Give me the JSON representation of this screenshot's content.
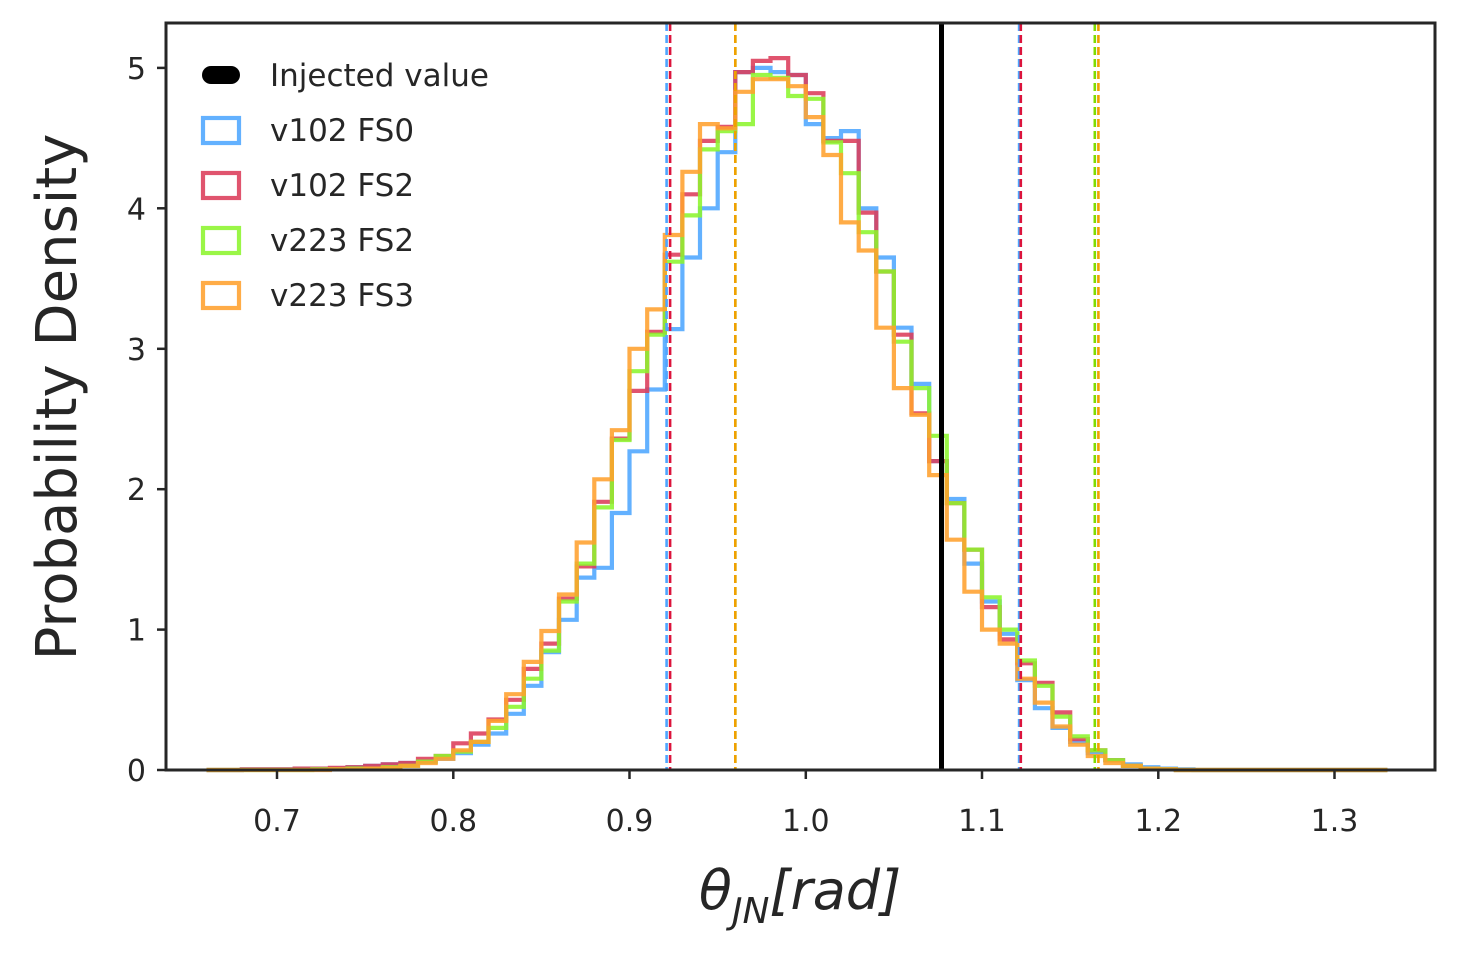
{
  "chart_data": {
    "type": "histogram",
    "title": "",
    "xlabel": "θ_JN[rad]",
    "xlabel_parts": {
      "symbol": "θ",
      "sub": "JN",
      "rest": "[rad]"
    },
    "ylabel": "Probability Density",
    "xlim": [
      0.637,
      1.357
    ],
    "ylim": [
      0,
      5.32
    ],
    "xticks": [
      0.7,
      0.8,
      0.9,
      1.0,
      1.1,
      1.2,
      1.3
    ],
    "xtick_labels": [
      "0.7",
      "0.8",
      "0.9",
      "1.0",
      "1.1",
      "1.2",
      "1.3"
    ],
    "yticks": [
      0,
      1,
      2,
      3,
      4,
      5
    ],
    "ytick_labels": [
      "0",
      "1",
      "2",
      "3",
      "4",
      "5"
    ],
    "grid": false,
    "legend_position": "top-left",
    "injected_value": {
      "label": "Injected value",
      "x": 1.077,
      "color": "#000000"
    },
    "bin_edges": [
      0.66,
      0.67,
      0.68,
      0.69,
      0.7,
      0.71,
      0.72,
      0.73,
      0.74,
      0.75,
      0.76,
      0.77,
      0.78,
      0.79,
      0.8,
      0.81,
      0.82,
      0.83,
      0.84,
      0.85,
      0.86,
      0.87,
      0.88,
      0.89,
      0.9,
      0.91,
      0.92,
      0.93,
      0.94,
      0.95,
      0.96,
      0.97,
      0.98,
      0.99,
      1.0,
      1.01,
      1.02,
      1.03,
      1.04,
      1.05,
      1.06,
      1.07,
      1.08,
      1.09,
      1.1,
      1.11,
      1.12,
      1.13,
      1.14,
      1.15,
      1.16,
      1.17,
      1.18,
      1.19,
      1.2,
      1.21,
      1.22,
      1.23,
      1.24,
      1.25,
      1.26,
      1.27,
      1.28,
      1.29,
      1.3,
      1.31,
      1.32,
      1.33
    ],
    "series": [
      {
        "name": "v102 FS0",
        "color": "#4da6ff",
        "values": [
          0,
          0,
          0.005,
          0.005,
          0.005,
          0.01,
          0.01,
          0.01,
          0.02,
          0.03,
          0.04,
          0.05,
          0.06,
          0.08,
          0.12,
          0.18,
          0.26,
          0.4,
          0.6,
          0.84,
          1.07,
          1.37,
          1.44,
          1.83,
          2.27,
          2.71,
          3.14,
          3.65,
          4.0,
          4.4,
          4.97,
          5.0,
          4.97,
          4.95,
          4.6,
          4.5,
          4.55,
          4.0,
          3.65,
          3.15,
          2.75,
          2.2,
          1.93,
          1.47,
          1.2,
          0.97,
          0.64,
          0.44,
          0.3,
          0.2,
          0.12,
          0.07,
          0.04,
          0.02,
          0.01,
          0.005,
          0,
          0,
          0,
          0,
          0,
          0,
          0,
          0,
          0,
          0,
          0
        ]
      },
      {
        "name": "v102 FS2",
        "color": "#dc3c5a",
        "values": [
          0,
          0,
          0.005,
          0.005,
          0.005,
          0.01,
          0.01,
          0.015,
          0.02,
          0.03,
          0.04,
          0.05,
          0.08,
          0.1,
          0.19,
          0.26,
          0.36,
          0.5,
          0.72,
          0.9,
          1.22,
          1.45,
          1.91,
          2.36,
          2.7,
          3.12,
          3.67,
          4.1,
          4.48,
          4.58,
          4.97,
          5.05,
          5.07,
          4.95,
          4.82,
          4.48,
          4.48,
          3.97,
          3.55,
          3.1,
          2.54,
          2.2,
          1.9,
          1.57,
          1.16,
          0.93,
          0.76,
          0.62,
          0.41,
          0.22,
          0.14,
          0.07,
          0.03,
          0.01,
          0.005,
          0,
          0,
          0,
          0,
          0,
          0,
          0,
          0,
          0,
          0,
          0,
          0
        ]
      },
      {
        "name": "v223 FS2",
        "color": "#8cf52d",
        "values": [
          0,
          0,
          0,
          0,
          0,
          0,
          0.005,
          0.005,
          0.01,
          0.01,
          0.02,
          0.03,
          0.06,
          0.1,
          0.13,
          0.2,
          0.3,
          0.45,
          0.65,
          0.85,
          1.2,
          1.47,
          1.87,
          2.35,
          2.84,
          3.1,
          3.62,
          3.95,
          4.42,
          4.55,
          4.6,
          4.95,
          4.93,
          4.8,
          4.78,
          4.47,
          4.25,
          3.83,
          3.55,
          3.05,
          2.72,
          2.38,
          1.9,
          1.57,
          1.23,
          1.0,
          0.78,
          0.6,
          0.38,
          0.24,
          0.14,
          0.07,
          0.03,
          0.01,
          0.005,
          0,
          0,
          0,
          0,
          0,
          0,
          0,
          0,
          0,
          0,
          0,
          0
        ]
      },
      {
        "name": "v223 FS3",
        "color": "#ffa02d",
        "values": [
          0,
          0,
          0,
          0,
          0,
          0,
          0,
          0.005,
          0.005,
          0.01,
          0.015,
          0.03,
          0.05,
          0.08,
          0.14,
          0.2,
          0.35,
          0.54,
          0.77,
          0.99,
          1.25,
          1.62,
          2.07,
          2.42,
          3.0,
          3.28,
          3.81,
          4.26,
          4.6,
          4.57,
          4.83,
          4.92,
          4.92,
          4.87,
          4.65,
          4.38,
          3.9,
          3.7,
          3.15,
          2.72,
          2.53,
          2.1,
          1.64,
          1.27,
          1.0,
          0.9,
          0.65,
          0.48,
          0.31,
          0.18,
          0.1,
          0.05,
          0.03,
          0.01,
          0.005,
          0,
          0,
          0,
          0,
          0,
          0,
          0,
          0,
          0,
          0,
          0,
          0
        ]
      }
    ],
    "interval_lines": [
      {
        "series": "v102 FS0",
        "color": "#4da6ff",
        "x": 0.921
      },
      {
        "series": "v102 FS0",
        "color": "#4da6ff",
        "x": 1.121
      },
      {
        "series": "v102 FS2",
        "color": "#dc143c",
        "x": 0.923
      },
      {
        "series": "v102 FS2",
        "color": "#dc143c",
        "x": 1.122
      },
      {
        "series": "v223 FS2",
        "color": "#7fdc00",
        "x": 0.96
      },
      {
        "series": "v223 FS2",
        "color": "#7fdc00",
        "x": 1.164
      },
      {
        "series": "v223 FS3",
        "color": "#f0a000",
        "x": 0.96
      },
      {
        "series": "v223 FS3",
        "color": "#f0a000",
        "x": 1.166
      }
    ]
  }
}
